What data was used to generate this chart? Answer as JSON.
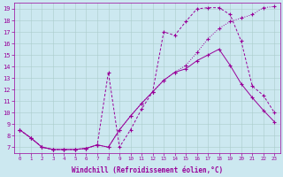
{
  "bg_color": "#cce8f0",
  "line_color": "#990099",
  "xlabel": "Windchill (Refroidissement éolien,°C)",
  "xlim": [
    -0.5,
    23.5
  ],
  "ylim": [
    6.5,
    19.5
  ],
  "yticks": [
    7,
    8,
    9,
    10,
    11,
    12,
    13,
    14,
    15,
    16,
    17,
    18,
    19
  ],
  "xticks": [
    0,
    1,
    2,
    3,
    4,
    5,
    6,
    7,
    8,
    9,
    10,
    11,
    12,
    13,
    14,
    15,
    16,
    17,
    18,
    19,
    20,
    21,
    22,
    23
  ],
  "line1_x": [
    0,
    1,
    2,
    3,
    4,
    5,
    6,
    7,
    8,
    9,
    10,
    11,
    12,
    13,
    14,
    15,
    16,
    17,
    18,
    19,
    20,
    21,
    22,
    23
  ],
  "line1_y": [
    8.5,
    7.8,
    7.0,
    6.8,
    6.8,
    6.8,
    6.9,
    7.2,
    7.0,
    8.5,
    9.7,
    10.8,
    11.8,
    12.8,
    13.5,
    14.1,
    15.2,
    16.4,
    17.3,
    17.9,
    18.2,
    18.5,
    19.1,
    19.2
  ],
  "line1_style": "dotted",
  "line2_x": [
    0,
    1,
    2,
    3,
    4,
    5,
    6,
    7,
    8,
    9,
    10,
    11,
    12,
    13,
    14,
    15,
    16,
    17,
    18,
    19,
    20,
    21,
    22,
    23
  ],
  "line2_y": [
    8.5,
    7.8,
    7.0,
    6.8,
    6.8,
    6.8,
    6.9,
    7.2,
    13.5,
    7.0,
    8.5,
    10.3,
    11.8,
    17.0,
    16.7,
    17.9,
    19.0,
    19.1,
    19.1,
    18.5,
    16.2,
    12.3,
    11.5,
    10.0
  ],
  "line2_style": "dashed",
  "line3_x": [
    0,
    1,
    2,
    3,
    4,
    5,
    6,
    7,
    8,
    9,
    10,
    11,
    12,
    13,
    14,
    15,
    16,
    17,
    18,
    19,
    20,
    21,
    22,
    23
  ],
  "line3_y": [
    8.5,
    7.8,
    7.0,
    6.8,
    6.8,
    6.8,
    6.9,
    7.2,
    7.0,
    8.5,
    9.7,
    10.8,
    11.8,
    12.8,
    13.5,
    13.8,
    14.5,
    15.0,
    15.5,
    14.1,
    12.5,
    11.3,
    10.2,
    9.2
  ],
  "line3_style": "solid",
  "grid_color": "#aacccc",
  "tick_fontsize": 5,
  "xlabel_fontsize": 5.5
}
